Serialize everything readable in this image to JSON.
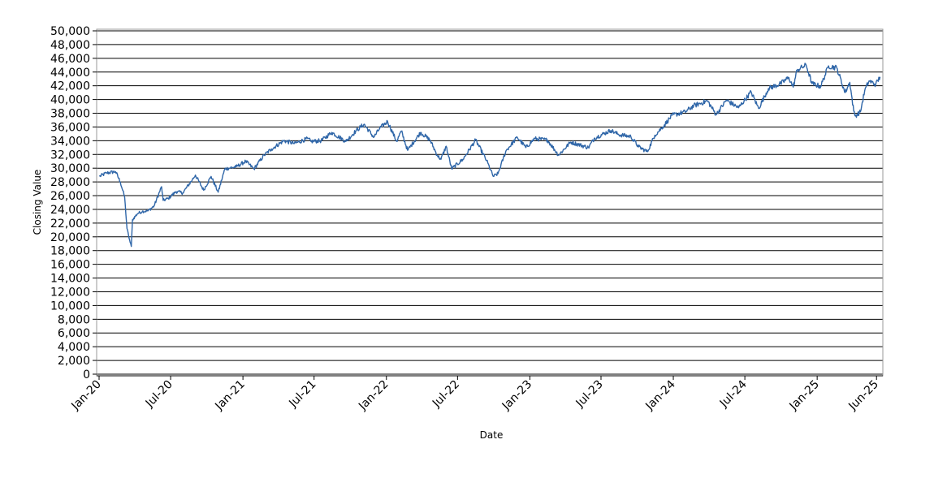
{
  "chart_data": {
    "type": "line",
    "title": "",
    "xlabel": "Date",
    "ylabel": "Closing Value",
    "xlim": [
      "2020-01-01",
      "2025-06-15"
    ],
    "ylim": [
      0,
      50000
    ],
    "y_ticks": [
      0,
      2000,
      4000,
      6000,
      8000,
      10000,
      12000,
      14000,
      16000,
      18000,
      20000,
      22000,
      24000,
      26000,
      28000,
      30000,
      32000,
      34000,
      36000,
      38000,
      40000,
      42000,
      44000,
      46000,
      48000,
      50000
    ],
    "y_tick_labels": [
      "0",
      "2,000",
      "4,000",
      "6,000",
      "8,000",
      "10,000",
      "12,000",
      "14,000",
      "16,000",
      "18,000",
      "20,000",
      "22,000",
      "24,000",
      "26,000",
      "28,000",
      "30,000",
      "32,000",
      "34,000",
      "36,000",
      "38,000",
      "40,000",
      "42,000",
      "44,000",
      "46,000",
      "48,000",
      "50,000"
    ],
    "x_ticks": [
      "2020-01-01",
      "2020-07-01",
      "2021-01-01",
      "2021-07-01",
      "2022-01-01",
      "2022-07-01",
      "2023-01-01",
      "2023-07-01",
      "2024-01-01",
      "2024-07-01",
      "2025-01-01",
      "2025-06-01"
    ],
    "x_tick_labels": [
      "Jan-20",
      "Jul-20",
      "Jan-21",
      "Jul-21",
      "Jan-22",
      "Jul-22",
      "Jan-23",
      "Jul-23",
      "Jan-24",
      "Jul-24",
      "Jan-25",
      "Jun-25"
    ],
    "grid": "horizontal",
    "legend": "none",
    "series_color": "#2f66a8",
    "series": [
      {
        "points": [
          [
            "2020-01-02",
            28800
          ],
          [
            "2020-01-20",
            29300
          ],
          [
            "2020-02-12",
            29500
          ],
          [
            "2020-02-24",
            28000
          ],
          [
            "2020-03-06",
            25800
          ],
          [
            "2020-03-12",
            21200
          ],
          [
            "2020-03-16",
            20200
          ],
          [
            "2020-03-20",
            19200
          ],
          [
            "2020-03-23",
            18600
          ],
          [
            "2020-03-26",
            22500
          ],
          [
            "2020-04-08",
            23400
          ],
          [
            "2020-04-20",
            23700
          ],
          [
            "2020-05-05",
            23800
          ],
          [
            "2020-05-20",
            24500
          ],
          [
            "2020-06-08",
            27300
          ],
          [
            "2020-06-12",
            25300
          ],
          [
            "2020-06-25",
            25600
          ],
          [
            "2020-07-15",
            26600
          ],
          [
            "2020-08-01",
            26400
          ],
          [
            "2020-08-25",
            28300
          ],
          [
            "2020-09-02",
            29000
          ],
          [
            "2020-09-23",
            26800
          ],
          [
            "2020-10-12",
            28800
          ],
          [
            "2020-10-30",
            26500
          ],
          [
            "2020-11-16",
            29900
          ],
          [
            "2020-12-15",
            30200
          ],
          [
            "2021-01-08",
            31000
          ],
          [
            "2021-01-29",
            29900
          ],
          [
            "2021-02-24",
            31900
          ],
          [
            "2021-03-15",
            32800
          ],
          [
            "2021-04-15",
            34000
          ],
          [
            "2021-05-12",
            33600
          ],
          [
            "2021-06-15",
            34300
          ],
          [
            "2021-06-23",
            33900
          ],
          [
            "2021-07-19",
            34000
          ],
          [
            "2021-08-15",
            35200
          ],
          [
            "2021-09-20",
            33900
          ],
          [
            "2021-10-15",
            35400
          ],
          [
            "2021-11-05",
            36400
          ],
          [
            "2021-11-30",
            34500
          ],
          [
            "2021-12-15",
            35800
          ],
          [
            "2022-01-04",
            36800
          ],
          [
            "2022-01-27",
            33900
          ],
          [
            "2022-02-08",
            35400
          ],
          [
            "2022-02-24",
            32600
          ],
          [
            "2022-03-29",
            35200
          ],
          [
            "2022-04-22",
            34100
          ],
          [
            "2022-05-11",
            31800
          ],
          [
            "2022-05-20",
            31300
          ],
          [
            "2022-06-02",
            33200
          ],
          [
            "2022-06-16",
            29900
          ],
          [
            "2022-07-15",
            31300
          ],
          [
            "2022-08-16",
            34100
          ],
          [
            "2022-09-13",
            31100
          ],
          [
            "2022-09-30",
            28800
          ],
          [
            "2022-10-12",
            29200
          ],
          [
            "2022-11-01",
            32500
          ],
          [
            "2022-11-30",
            34500
          ],
          [
            "2022-12-22",
            33000
          ],
          [
            "2023-01-13",
            34300
          ],
          [
            "2023-02-15",
            34100
          ],
          [
            "2023-03-15",
            31900
          ],
          [
            "2023-04-15",
            33800
          ],
          [
            "2023-05-30",
            33000
          ],
          [
            "2023-06-15",
            34400
          ],
          [
            "2023-07-26",
            35500
          ],
          [
            "2023-08-15",
            34900
          ],
          [
            "2023-09-15",
            34600
          ],
          [
            "2023-10-05",
            33100
          ],
          [
            "2023-10-27",
            32400
          ],
          [
            "2023-11-15",
            34800
          ],
          [
            "2023-12-05",
            36000
          ],
          [
            "2023-12-29",
            37700
          ],
          [
            "2024-01-31",
            38200
          ],
          [
            "2024-02-22",
            39100
          ],
          [
            "2024-03-28",
            39800
          ],
          [
            "2024-04-19",
            37800
          ],
          [
            "2024-05-15",
            39900
          ],
          [
            "2024-06-15",
            38800
          ],
          [
            "2024-07-17",
            41100
          ],
          [
            "2024-08-05",
            38700
          ],
          [
            "2024-08-30",
            41600
          ],
          [
            "2024-09-30",
            42300
          ],
          [
            "2024-10-21",
            43200
          ],
          [
            "2024-11-01",
            41800
          ],
          [
            "2024-11-11",
            44300
          ],
          [
            "2024-12-04",
            45000
          ],
          [
            "2024-12-19",
            42300
          ],
          [
            "2025-01-10",
            41900
          ],
          [
            "2025-01-30",
            44900
          ],
          [
            "2025-02-20",
            44600
          ],
          [
            "2025-03-13",
            41000
          ],
          [
            "2025-03-25",
            42500
          ],
          [
            "2025-04-04",
            38300
          ],
          [
            "2025-04-08",
            37600
          ],
          [
            "2025-04-21",
            38200
          ],
          [
            "2025-05-02",
            41300
          ],
          [
            "2025-05-13",
            42700
          ],
          [
            "2025-05-30",
            42200
          ],
          [
            "2025-06-10",
            43300
          ]
        ]
      }
    ]
  }
}
